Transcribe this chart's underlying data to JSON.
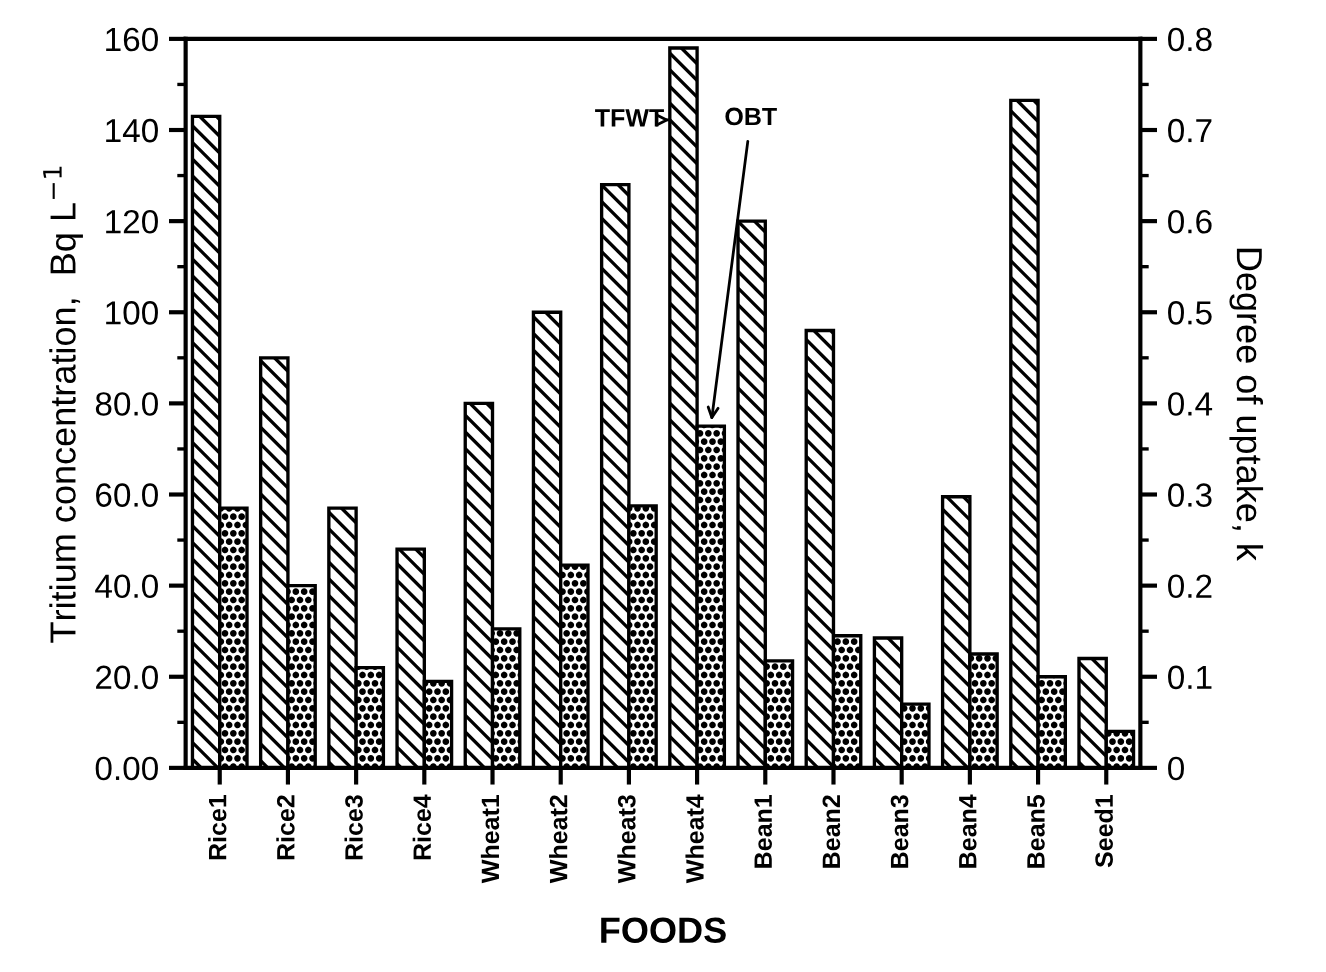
{
  "chart_data": {
    "type": "bar",
    "xlabel": "FOODS",
    "ylabel": "Tritium concentration,  Bq L$^{−1}$",
    "y2label": "Degree of uptake, k",
    "categories": [
      "Rice1",
      "Rice2",
      "Rice3",
      "Rice4",
      "Wheat1",
      "Wheat2",
      "Wheat3",
      "Wheat4",
      "Bean1",
      "Bean2",
      "Bean3",
      "Bean4",
      "Bean5",
      "Seed1"
    ],
    "series": [
      {
        "name": "TFWT",
        "color": "#000000",
        "values": [
          143,
          90,
          57,
          48,
          80,
          100,
          128,
          158,
          120,
          96,
          28.5,
          59.5,
          146.5,
          24
        ]
      },
      {
        "name": "OBT",
        "color": "#000000",
        "values": [
          57,
          40,
          22,
          19,
          30.5,
          44.5,
          57.5,
          75,
          23.5,
          29,
          14,
          25,
          20,
          8
        ]
      }
    ],
    "ylim": [
      0,
      160
    ],
    "yticks": [
      {
        "value": 0,
        "label": "0.00"
      },
      {
        "value": 20,
        "label": "20.0"
      },
      {
        "value": 40,
        "label": "40.0"
      },
      {
        "value": 60,
        "label": "60.0"
      },
      {
        "value": 80,
        "label": "80.0"
      },
      100,
      120,
      140,
      160
    ],
    "y2lim": [
      0,
      0.8
    ],
    "y2ticks": [
      0,
      0.1,
      0.2,
      0.3,
      0.4,
      0.5,
      0.6,
      0.7,
      0.8
    ],
    "grid": false,
    "legend": false
  }
}
